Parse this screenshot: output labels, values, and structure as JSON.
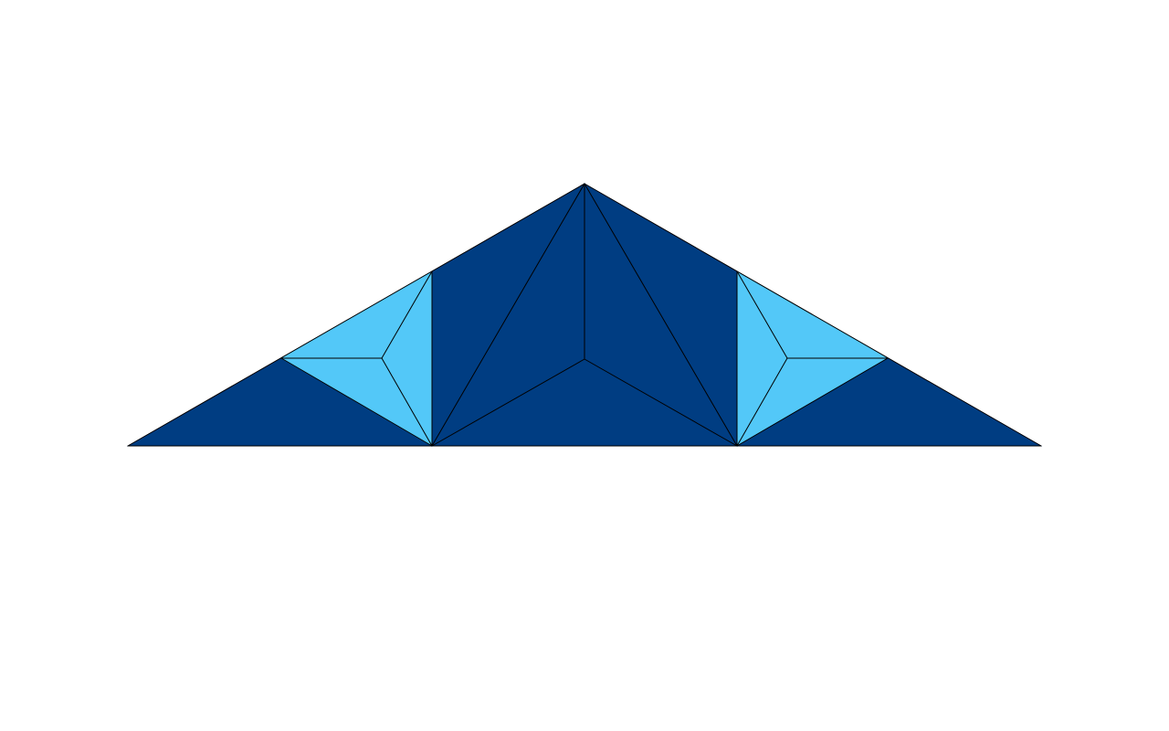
{
  "diagram": {
    "background": "#ffffff",
    "colors": {
      "dark_fill": "#003D82",
      "light_fill": "#53C8F8",
      "line": "#000000"
    },
    "regions": [
      {
        "name": "left-outer-dark-triangle",
        "fill": "dark"
      },
      {
        "name": "left-outer-dark-lower-triangle",
        "fill": "dark"
      },
      {
        "name": "left-light-triangle-top",
        "fill": "light"
      },
      {
        "name": "left-light-triangle-bottom",
        "fill": "light"
      },
      {
        "name": "left-light-triangle-right",
        "fill": "light"
      },
      {
        "name": "left-inner-dark-triangle",
        "fill": "dark"
      },
      {
        "name": "center-left-dark-triangle",
        "fill": "dark"
      },
      {
        "name": "center-right-dark-triangle",
        "fill": "dark"
      },
      {
        "name": "center-bottom-dark-triangle",
        "fill": "dark"
      },
      {
        "name": "right-inner-dark-triangle",
        "fill": "dark"
      },
      {
        "name": "right-light-triangle-left",
        "fill": "light"
      },
      {
        "name": "right-light-triangle-top",
        "fill": "light"
      },
      {
        "name": "right-light-triangle-bottom",
        "fill": "light"
      },
      {
        "name": "right-outer-dark-lower-triangle",
        "fill": "dark"
      },
      {
        "name": "right-outer-dark-triangle",
        "fill": "dark"
      }
    ]
  }
}
